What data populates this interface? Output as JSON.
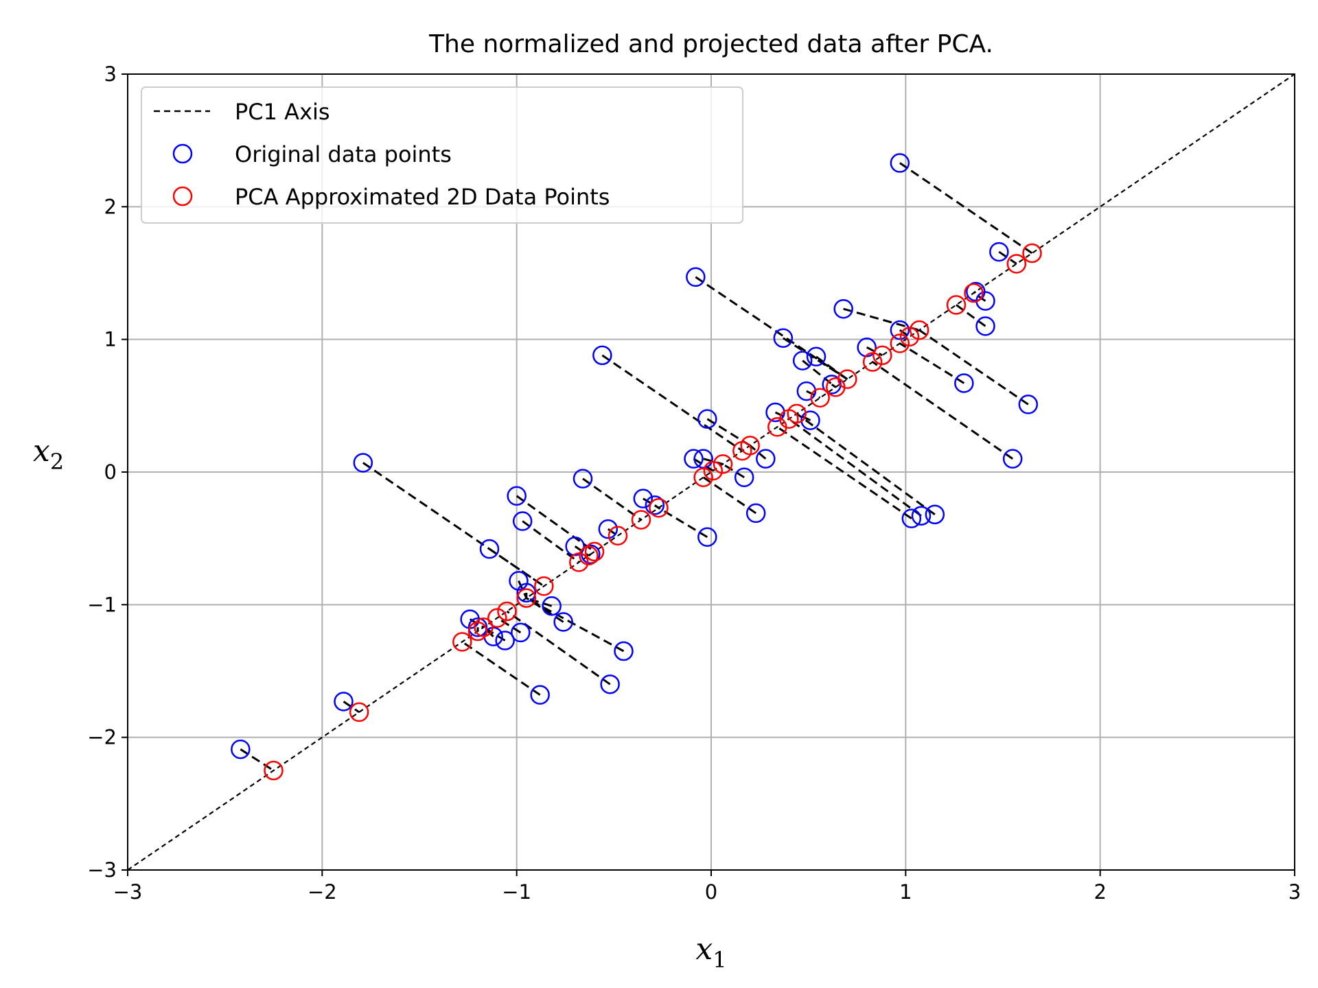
{
  "chart_data": {
    "type": "scatter",
    "title": "The normalized and projected data after PCA.",
    "xlabel": "x",
    "xlabel_sub": "1",
    "ylabel": "x",
    "ylabel_sub": "2",
    "xlim": [
      -3,
      3
    ],
    "ylim": [
      -3,
      3
    ],
    "xticks": [
      -3,
      -2,
      -1,
      0,
      1,
      2,
      3
    ],
    "yticks": [
      -3,
      -2,
      -1,
      0,
      1,
      2,
      3
    ],
    "xtick_labels": [
      "−3",
      "−2",
      "−1",
      "0",
      "1",
      "2",
      "3"
    ],
    "ytick_labels": [
      "−3",
      "−2",
      "−1",
      "0",
      "1",
      "2",
      "3"
    ],
    "grid": true,
    "legend_position": "top-left",
    "colors": {
      "original": "#0000ff",
      "projected": "#ff0000",
      "line": "#000000",
      "grid": "#b0b0b0"
    },
    "pc1_axis": {
      "name": "PC1 Axis",
      "from": [
        -3,
        -3
      ],
      "to": [
        3,
        3
      ]
    },
    "series": [
      {
        "name": "Original data points",
        "points": [
          [
            0.97,
            2.33
          ],
          [
            1.48,
            1.66
          ],
          [
            -0.08,
            1.47
          ],
          [
            0.68,
            1.23
          ],
          [
            1.41,
            1.29
          ],
          [
            1.36,
            1.36
          ],
          [
            1.41,
            1.1
          ],
          [
            0.97,
            1.07
          ],
          [
            0.37,
            1.01
          ],
          [
            0.8,
            0.94
          ],
          [
            0.47,
            0.84
          ],
          [
            0.54,
            0.87
          ],
          [
            1.3,
            0.67
          ],
          [
            1.63,
            0.51
          ],
          [
            -0.56,
            0.88
          ],
          [
            0.62,
            0.66
          ],
          [
            0.49,
            0.61
          ],
          [
            0.33,
            0.45
          ],
          [
            0.51,
            0.39
          ],
          [
            -0.02,
            0.4
          ],
          [
            0.28,
            0.1
          ],
          [
            1.55,
            0.1
          ],
          [
            -0.09,
            0.1
          ],
          [
            -0.04,
            0.1
          ],
          [
            0.17,
            -0.04
          ],
          [
            -1.79,
            0.07
          ],
          [
            -0.66,
            -0.05
          ],
          [
            0.23,
            -0.31
          ],
          [
            -1.0,
            -0.18
          ],
          [
            -0.35,
            -0.2
          ],
          [
            -0.29,
            -0.25
          ],
          [
            -0.97,
            -0.37
          ],
          [
            1.03,
            -0.35
          ],
          [
            1.08,
            -0.33
          ],
          [
            1.15,
            -0.32
          ],
          [
            -0.53,
            -0.43
          ],
          [
            -0.02,
            -0.49
          ],
          [
            -1.14,
            -0.58
          ],
          [
            -0.7,
            -0.56
          ],
          [
            -0.62,
            -0.62
          ],
          [
            -0.99,
            -0.82
          ],
          [
            -0.95,
            -0.91
          ],
          [
            -0.82,
            -1.01
          ],
          [
            -0.76,
            -1.13
          ],
          [
            -1.24,
            -1.11
          ],
          [
            -1.2,
            -1.17
          ],
          [
            -1.12,
            -1.24
          ],
          [
            -1.06,
            -1.27
          ],
          [
            -0.98,
            -1.21
          ],
          [
            -0.45,
            -1.35
          ],
          [
            -0.52,
            -1.6
          ],
          [
            -0.88,
            -1.68
          ],
          [
            -1.89,
            -1.73
          ],
          [
            -2.42,
            -2.09
          ]
        ]
      },
      {
        "name": "PCA Approximated 2D Data Points",
        "points": [
          [
            1.65,
            1.65
          ],
          [
            1.57,
            1.57
          ],
          [
            1.35,
            1.35
          ],
          [
            1.26,
            1.26
          ],
          [
            1.07,
            1.07
          ],
          [
            1.02,
            1.02
          ],
          [
            0.97,
            0.97
          ],
          [
            0.88,
            0.88
          ],
          [
            0.83,
            0.83
          ],
          [
            0.7,
            0.7
          ],
          [
            0.64,
            0.64
          ],
          [
            0.56,
            0.56
          ],
          [
            0.44,
            0.44
          ],
          [
            0.4,
            0.4
          ],
          [
            0.34,
            0.34
          ],
          [
            0.2,
            0.2
          ],
          [
            0.16,
            0.16
          ],
          [
            0.06,
            0.06
          ],
          [
            0.01,
            0.01
          ],
          [
            -0.04,
            -0.04
          ],
          [
            -0.27,
            -0.27
          ],
          [
            -0.36,
            -0.36
          ],
          [
            -0.48,
            -0.48
          ],
          [
            -0.6,
            -0.6
          ],
          [
            -0.63,
            -0.63
          ],
          [
            -0.68,
            -0.68
          ],
          [
            -0.86,
            -0.86
          ],
          [
            -0.95,
            -0.95
          ],
          [
            -1.05,
            -1.05
          ],
          [
            -1.1,
            -1.1
          ],
          [
            -1.17,
            -1.17
          ],
          [
            -1.2,
            -1.2
          ],
          [
            -1.28,
            -1.28
          ],
          [
            -1.81,
            -1.81
          ],
          [
            -2.25,
            -2.25
          ]
        ]
      }
    ],
    "projection_lines": [
      [
        [
          0.97,
          2.33
        ],
        [
          1.65,
          1.65
        ]
      ],
      [
        [
          1.48,
          1.66
        ],
        [
          1.57,
          1.57
        ]
      ],
      [
        [
          -0.08,
          1.47
        ],
        [
          0.7,
          0.7
        ]
      ],
      [
        [
          0.68,
          1.23
        ],
        [
          1.07,
          1.07
        ]
      ],
      [
        [
          1.41,
          1.29
        ],
        [
          1.35,
          1.35
        ]
      ],
      [
        [
          1.36,
          1.36
        ],
        [
          1.35,
          1.35
        ]
      ],
      [
        [
          1.41,
          1.1
        ],
        [
          1.26,
          1.26
        ]
      ],
      [
        [
          0.97,
          1.07
        ],
        [
          1.02,
          1.02
        ]
      ],
      [
        [
          0.37,
          1.01
        ],
        [
          0.7,
          0.7
        ]
      ],
      [
        [
          0.8,
          0.94
        ],
        [
          0.88,
          0.88
        ]
      ],
      [
        [
          0.47,
          0.84
        ],
        [
          0.64,
          0.64
        ]
      ],
      [
        [
          0.54,
          0.87
        ],
        [
          0.7,
          0.7
        ]
      ],
      [
        [
          1.3,
          0.67
        ],
        [
          0.97,
          0.97
        ]
      ],
      [
        [
          1.63,
          0.51
        ],
        [
          1.07,
          1.07
        ]
      ],
      [
        [
          -0.56,
          0.88
        ],
        [
          0.16,
          0.16
        ]
      ],
      [
        [
          0.62,
          0.66
        ],
        [
          0.64,
          0.64
        ]
      ],
      [
        [
          0.49,
          0.61
        ],
        [
          0.56,
          0.56
        ]
      ],
      [
        [
          0.33,
          0.45
        ],
        [
          0.4,
          0.4
        ]
      ],
      [
        [
          0.51,
          0.39
        ],
        [
          0.44,
          0.44
        ]
      ],
      [
        [
          -0.02,
          0.4
        ],
        [
          0.2,
          0.2
        ]
      ],
      [
        [
          0.28,
          0.1
        ],
        [
          0.2,
          0.2
        ]
      ],
      [
        [
          1.55,
          0.1
        ],
        [
          0.83,
          0.83
        ]
      ],
      [
        [
          -0.09,
          0.1
        ],
        [
          0.01,
          0.01
        ]
      ],
      [
        [
          -0.04,
          0.1
        ],
        [
          0.06,
          0.06
        ]
      ],
      [
        [
          0.17,
          -0.04
        ],
        [
          0.06,
          0.06
        ]
      ],
      [
        [
          -1.79,
          0.07
        ],
        [
          -0.86,
          -0.86
        ]
      ],
      [
        [
          -0.66,
          -0.05
        ],
        [
          -0.36,
          -0.36
        ]
      ],
      [
        [
          0.23,
          -0.31
        ],
        [
          -0.04,
          -0.04
        ]
      ],
      [
        [
          -1.0,
          -0.18
        ],
        [
          -0.6,
          -0.6
        ]
      ],
      [
        [
          -0.35,
          -0.2
        ],
        [
          -0.27,
          -0.27
        ]
      ],
      [
        [
          -0.29,
          -0.25
        ],
        [
          -0.27,
          -0.27
        ]
      ],
      [
        [
          -0.97,
          -0.37
        ],
        [
          -0.68,
          -0.68
        ]
      ],
      [
        [
          1.03,
          -0.35
        ],
        [
          0.34,
          0.34
        ]
      ],
      [
        [
          1.08,
          -0.33
        ],
        [
          0.4,
          0.4
        ]
      ],
      [
        [
          1.15,
          -0.32
        ],
        [
          0.44,
          0.44
        ]
      ],
      [
        [
          -0.53,
          -0.43
        ],
        [
          -0.48,
          -0.48
        ]
      ],
      [
        [
          -0.02,
          -0.49
        ],
        [
          -0.27,
          -0.27
        ]
      ],
      [
        [
          -1.14,
          -0.58
        ],
        [
          -0.86,
          -0.86
        ]
      ],
      [
        [
          -0.7,
          -0.56
        ],
        [
          -0.63,
          -0.63
        ]
      ],
      [
        [
          -0.62,
          -0.62
        ],
        [
          -0.63,
          -0.63
        ]
      ],
      [
        [
          -0.99,
          -0.82
        ],
        [
          -0.95,
          -0.95
        ]
      ],
      [
        [
          -0.95,
          -0.91
        ],
        [
          -0.95,
          -0.95
        ]
      ],
      [
        [
          -0.82,
          -1.01
        ],
        [
          -0.95,
          -0.95
        ]
      ],
      [
        [
          -0.76,
          -1.13
        ],
        [
          -0.95,
          -0.95
        ]
      ],
      [
        [
          -1.24,
          -1.11
        ],
        [
          -1.17,
          -1.17
        ]
      ],
      [
        [
          -1.2,
          -1.17
        ],
        [
          -1.2,
          -1.2
        ]
      ],
      [
        [
          -1.12,
          -1.24
        ],
        [
          -1.17,
          -1.17
        ]
      ],
      [
        [
          -1.06,
          -1.27
        ],
        [
          -1.17,
          -1.17
        ]
      ],
      [
        [
          -0.98,
          -1.21
        ],
        [
          -1.1,
          -1.1
        ]
      ],
      [
        [
          -0.45,
          -1.35
        ],
        [
          -0.95,
          -0.95
        ]
      ],
      [
        [
          -0.52,
          -1.6
        ],
        [
          -1.05,
          -1.05
        ]
      ],
      [
        [
          -0.88,
          -1.68
        ],
        [
          -1.28,
          -1.28
        ]
      ],
      [
        [
          -1.89,
          -1.73
        ],
        [
          -1.81,
          -1.81
        ]
      ],
      [
        [
          -2.42,
          -2.09
        ],
        [
          -2.25,
          -2.25
        ]
      ]
    ]
  }
}
